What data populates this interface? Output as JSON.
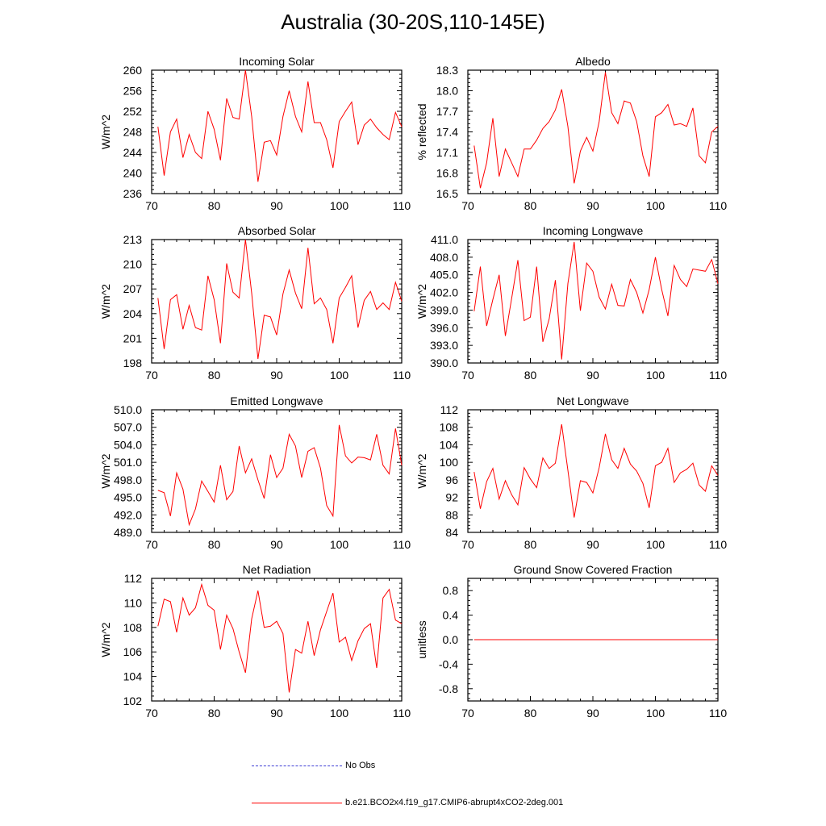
{
  "title": "Australia (30-20S,110-145E)",
  "legend": {
    "obs_label": "No Obs",
    "model_label": "b.e21.BCO2x4.f19_g17.CMIP6-abrupt4xCO2-2deg.001",
    "obs_color": "#3b3bd4",
    "model_color": "#ff0000"
  },
  "chart_data": [
    {
      "type": "line",
      "title": "Incoming Solar",
      "ylabel": "W/m^2",
      "xlim": [
        70,
        110
      ],
      "xticks": [
        "70",
        "80",
        "90",
        "100",
        "110"
      ],
      "ylim": [
        236,
        260
      ],
      "yticks": [
        "236",
        "240",
        "244",
        "248",
        "252",
        "256",
        "260"
      ],
      "x": [
        71,
        72,
        73,
        74,
        75,
        76,
        77,
        78,
        79,
        80,
        81,
        82,
        83,
        84,
        85,
        86,
        87,
        88,
        89,
        90,
        91,
        92,
        93,
        94,
        95,
        96,
        97,
        98,
        99,
        100,
        101,
        102,
        103,
        104,
        105,
        106,
        107,
        108,
        109,
        110
      ],
      "series": [
        {
          "name": "b.e21.BCO2x4.f19_g17.CMIP6-abrupt4xCO2-2deg.001",
          "values": [
            249.0,
            239.5,
            248.0,
            250.5,
            243.0,
            247.5,
            244.0,
            242.8,
            252.0,
            248.5,
            242.5,
            254.5,
            250.8,
            250.5,
            260.0,
            251.0,
            238.3,
            246.0,
            246.3,
            243.5,
            251.0,
            256.0,
            251.0,
            248.0,
            257.8,
            249.8,
            249.8,
            246.5,
            241.0,
            250.0,
            252.0,
            253.8,
            245.5,
            249.3,
            250.5,
            248.8,
            247.5,
            246.5,
            251.8,
            249.0
          ]
        }
      ]
    },
    {
      "type": "line",
      "title": "Albedo",
      "ylabel": "% reflected",
      "xlim": [
        70,
        110
      ],
      "xticks": [
        "70",
        "80",
        "90",
        "100",
        "110"
      ],
      "ylim": [
        16.5,
        18.3
      ],
      "yticks": [
        "16.5",
        "16.8",
        "17.1",
        "17.4",
        "17.7",
        "18.0",
        "18.3"
      ],
      "x": [
        71,
        72,
        73,
        74,
        75,
        76,
        77,
        78,
        79,
        80,
        81,
        82,
        83,
        84,
        85,
        86,
        87,
        88,
        89,
        90,
        91,
        92,
        93,
        94,
        95,
        96,
        97,
        98,
        99,
        100,
        101,
        102,
        103,
        104,
        105,
        106,
        107,
        108,
        109,
        110
      ],
      "series": [
        {
          "name": "b.e21.BCO2x4.f19_g17.CMIP6-abrupt4xCO2-2deg.001",
          "values": [
            17.2,
            16.58,
            16.95,
            17.6,
            16.75,
            17.15,
            16.95,
            16.75,
            17.15,
            17.15,
            17.28,
            17.45,
            17.55,
            17.72,
            18.02,
            17.48,
            16.65,
            17.12,
            17.32,
            17.12,
            17.55,
            18.27,
            17.68,
            17.52,
            17.85,
            17.82,
            17.55,
            17.05,
            16.75,
            17.62,
            17.68,
            17.8,
            17.5,
            17.52,
            17.48,
            17.75,
            17.05,
            16.95,
            17.4,
            17.48
          ]
        }
      ]
    },
    {
      "type": "line",
      "title": "Absorbed Solar",
      "ylabel": "W/m^2",
      "xlim": [
        70,
        110
      ],
      "xticks": [
        "70",
        "80",
        "90",
        "100",
        "110"
      ],
      "ylim": [
        198,
        213
      ],
      "yticks": [
        "198",
        "201",
        "204",
        "207",
        "210",
        "213"
      ],
      "x": [
        71,
        72,
        73,
        74,
        75,
        76,
        77,
        78,
        79,
        80,
        81,
        82,
        83,
        84,
        85,
        86,
        87,
        88,
        89,
        90,
        91,
        92,
        93,
        94,
        95,
        96,
        97,
        98,
        99,
        100,
        101,
        102,
        103,
        104,
        105,
        106,
        107,
        108,
        109,
        110
      ],
      "series": [
        {
          "name": "b.e21.BCO2x4.f19_g17.CMIP6-abrupt4xCO2-2deg.001",
          "values": [
            205.9,
            199.7,
            205.7,
            206.3,
            202.1,
            205.0,
            202.3,
            202.0,
            208.6,
            205.7,
            200.4,
            210.1,
            206.6,
            205.9,
            213.0,
            206.5,
            198.5,
            203.8,
            203.6,
            201.4,
            206.4,
            209.3,
            206.5,
            204.6,
            212.0,
            205.2,
            205.9,
            204.5,
            200.4,
            205.9,
            207.2,
            208.6,
            202.3,
            205.6,
            206.7,
            204.5,
            205.3,
            204.5,
            207.8,
            205.5
          ]
        }
      ]
    },
    {
      "type": "line",
      "title": "Incoming Longwave",
      "ylabel": "W/m^2",
      "xlim": [
        70,
        110
      ],
      "xticks": [
        "70",
        "80",
        "90",
        "100",
        "110"
      ],
      "ylim": [
        390.0,
        411.0
      ],
      "yticks": [
        "390.0",
        "393.0",
        "396.0",
        "399.0",
        "402.0",
        "405.0",
        "408.0",
        "411.0"
      ],
      "x": [
        71,
        72,
        73,
        74,
        75,
        76,
        77,
        78,
        79,
        80,
        81,
        82,
        83,
        84,
        85,
        86,
        87,
        88,
        89,
        90,
        91,
        92,
        93,
        94,
        95,
        96,
        97,
        98,
        99,
        100,
        101,
        102,
        103,
        104,
        105,
        106,
        107,
        108,
        109,
        110
      ],
      "series": [
        {
          "name": "b.e21.BCO2x4.f19_g17.CMIP6-abrupt4xCO2-2deg.001",
          "values": [
            398.8,
            406.4,
            396.3,
            400.8,
            405.0,
            394.6,
            401.0,
            407.5,
            397.2,
            397.8,
            406.4,
            393.6,
            397.5,
            404.1,
            390.6,
            403.5,
            410.6,
            398.9,
            407.0,
            405.6,
            401.2,
            399.2,
            403.4,
            399.8,
            399.7,
            404.2,
            402.0,
            398.5,
            402.5,
            408.0,
            402.5,
            398.0,
            406.6,
            404.2,
            403.0,
            406.0,
            405.8,
            405.6,
            407.6,
            403.5
          ]
        }
      ]
    },
    {
      "type": "line",
      "title": "Emitted Longwave",
      "ylabel": "W/m^2",
      "xlim": [
        70,
        110
      ],
      "xticks": [
        "70",
        "80",
        "90",
        "100",
        "110"
      ],
      "ylim": [
        489.0,
        510.0
      ],
      "yticks": [
        "489.0",
        "492.0",
        "495.0",
        "498.0",
        "501.0",
        "504.0",
        "507.0",
        "510.0"
      ],
      "x": [
        71,
        72,
        73,
        74,
        75,
        76,
        77,
        78,
        79,
        80,
        81,
        82,
        83,
        84,
        85,
        86,
        87,
        88,
        89,
        90,
        91,
        92,
        93,
        94,
        95,
        96,
        97,
        98,
        99,
        100,
        101,
        102,
        103,
        104,
        105,
        106,
        107,
        108,
        109,
        110
      ],
      "series": [
        {
          "name": "b.e21.BCO2x4.f19_g17.CMIP6-abrupt4xCO2-2deg.001",
          "values": [
            496.2,
            495.8,
            491.8,
            499.2,
            496.4,
            490.3,
            493.0,
            497.8,
            496.0,
            494.2,
            500.5,
            494.6,
            496.0,
            503.8,
            499.2,
            501.6,
            498.0,
            494.8,
            502.3,
            498.4,
            500.0,
            505.8,
            503.8,
            498.4,
            502.9,
            503.5,
            500.0,
            493.6,
            491.8,
            507.4,
            502.1,
            500.9,
            501.9,
            501.8,
            501.4,
            505.8,
            500.5,
            499.0,
            506.8,
            500.5
          ]
        }
      ]
    },
    {
      "type": "line",
      "title": "Net Longwave",
      "ylabel": "W/m^2",
      "xlim": [
        70,
        110
      ],
      "xticks": [
        "70",
        "80",
        "90",
        "100",
        "110"
      ],
      "ylim": [
        84,
        112
      ],
      "yticks": [
        "84",
        "88",
        "92",
        "96",
        "100",
        "104",
        "108",
        "112"
      ],
      "x": [
        71,
        72,
        73,
        74,
        75,
        76,
        77,
        78,
        79,
        80,
        81,
        82,
        83,
        84,
        85,
        86,
        87,
        88,
        89,
        90,
        91,
        92,
        93,
        94,
        95,
        96,
        97,
        98,
        99,
        100,
        101,
        102,
        103,
        104,
        105,
        106,
        107,
        108,
        109,
        110
      ],
      "series": [
        {
          "name": "b.e21.BCO2x4.f19_g17.CMIP6-abrupt4xCO2-2deg.001",
          "values": [
            97.8,
            89.4,
            95.6,
            98.6,
            91.6,
            95.8,
            92.6,
            90.3,
            98.8,
            96.2,
            94.2,
            101.0,
            98.6,
            99.8,
            108.7,
            98.2,
            87.4,
            95.8,
            95.4,
            93.0,
            98.8,
            106.5,
            100.6,
            98.6,
            103.2,
            99.6,
            98.0,
            95.2,
            89.6,
            99.2,
            100.0,
            103.2,
            95.4,
            97.6,
            98.4,
            99.8,
            94.8,
            93.4,
            99.2,
            97.0
          ]
        }
      ]
    },
    {
      "type": "line",
      "title": "Net Radiation",
      "ylabel": "W/m^2",
      "xlim": [
        70,
        110
      ],
      "xticks": [
        "70",
        "80",
        "90",
        "100",
        "110"
      ],
      "ylim": [
        102,
        112
      ],
      "yticks": [
        "102",
        "104",
        "106",
        "108",
        "110",
        "112"
      ],
      "x": [
        71,
        72,
        73,
        74,
        75,
        76,
        77,
        78,
        79,
        80,
        81,
        82,
        83,
        84,
        85,
        86,
        87,
        88,
        89,
        90,
        91,
        92,
        93,
        94,
        95,
        96,
        97,
        98,
        99,
        100,
        101,
        102,
        103,
        104,
        105,
        106,
        107,
        108,
        109,
        110
      ],
      "series": [
        {
          "name": "b.e21.BCO2x4.f19_g17.CMIP6-abrupt4xCO2-2deg.001",
          "values": [
            108.1,
            110.3,
            110.1,
            107.6,
            110.4,
            109.0,
            109.6,
            111.5,
            109.8,
            109.4,
            106.2,
            109.0,
            107.9,
            106.0,
            104.3,
            108.7,
            111.0,
            108.0,
            108.1,
            108.5,
            107.5,
            102.7,
            106.2,
            105.9,
            108.5,
            105.7,
            107.8,
            109.3,
            110.8,
            106.8,
            107.2,
            105.3,
            106.9,
            107.9,
            108.3,
            104.7,
            110.4,
            111.1,
            108.6,
            108.3
          ]
        }
      ]
    },
    {
      "type": "line",
      "title": "Ground Snow Covered Fraction",
      "ylabel": "unitless",
      "xlim": [
        70,
        110
      ],
      "xticks": [
        "70",
        "80",
        "90",
        "100",
        "110"
      ],
      "ylim": [
        -1.0,
        1.0
      ],
      "yticks": [
        "-0.8",
        "-0.4",
        "0.0",
        "0.4",
        "0.8"
      ],
      "ytick_values": [
        -0.8,
        -0.4,
        0.0,
        0.4,
        0.8
      ],
      "x": [
        71,
        110
      ],
      "series": [
        {
          "name": "b.e21.BCO2x4.f19_g17.CMIP6-abrupt4xCO2-2deg.001",
          "values": [
            0.0,
            0.0
          ]
        }
      ]
    }
  ]
}
